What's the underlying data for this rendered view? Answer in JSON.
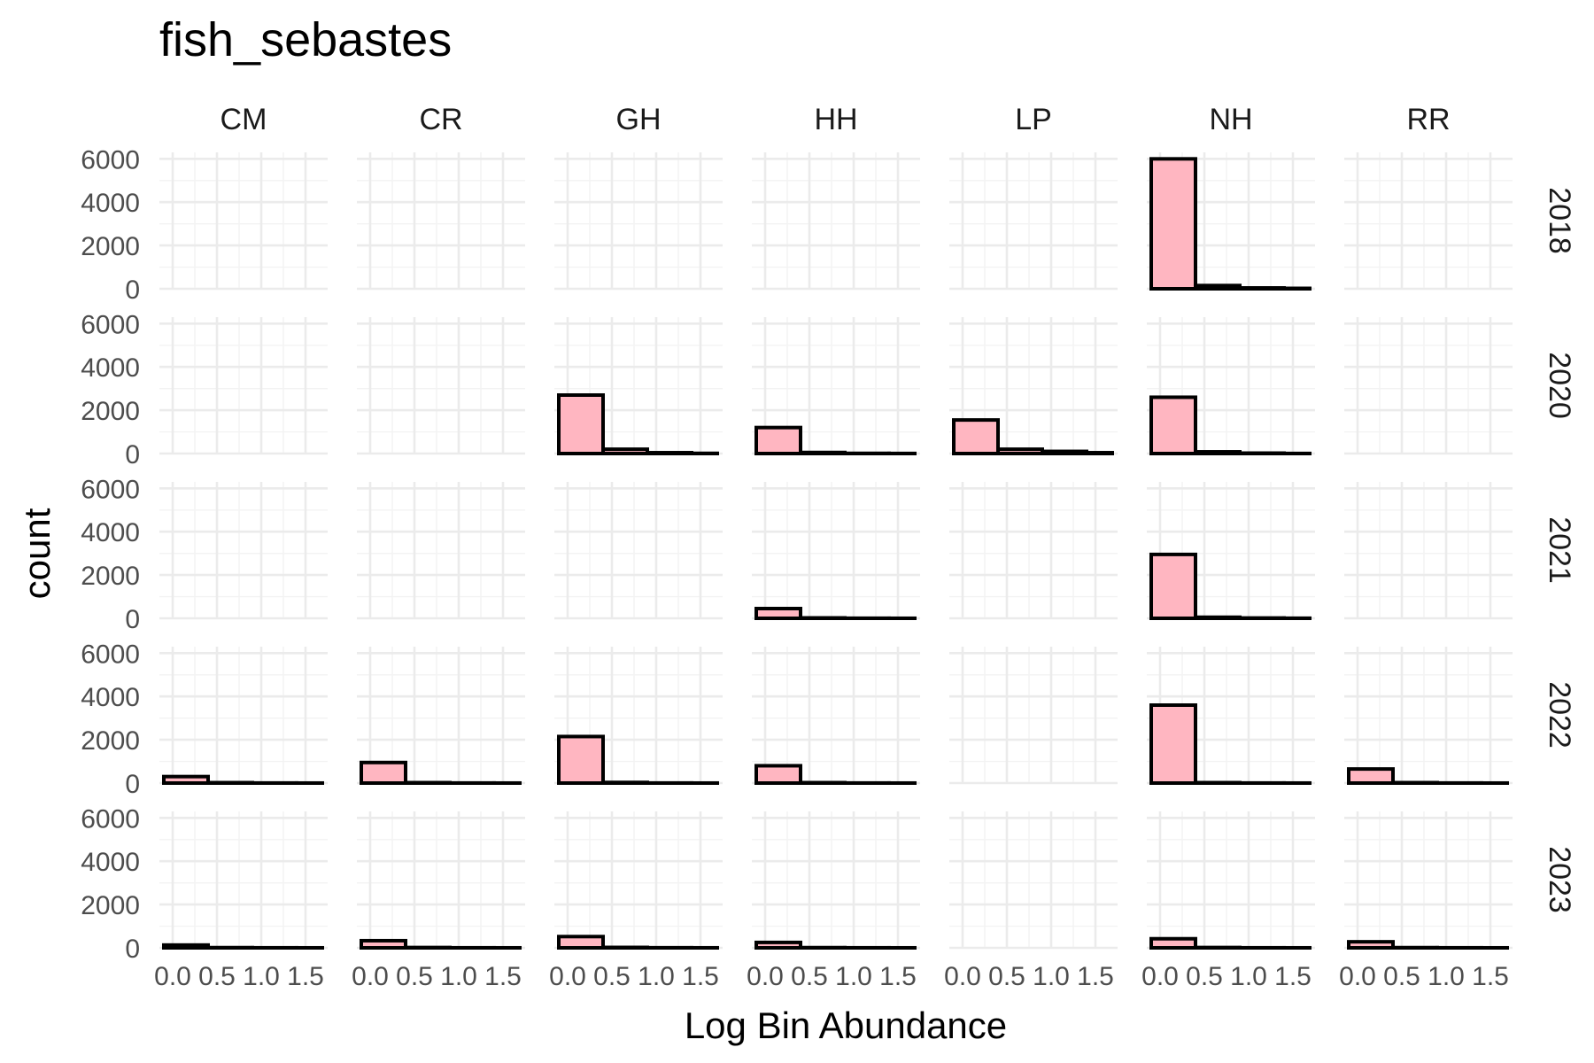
{
  "chart_data": {
    "type": "bar",
    "title": "fish_sebastes",
    "xlabel": "Log Bin Abundance",
    "ylabel": "count",
    "facet_columns": [
      "CM",
      "CR",
      "GH",
      "HH",
      "LP",
      "NH",
      "RR"
    ],
    "facet_rows": [
      "2018",
      "2020",
      "2021",
      "2022",
      "2023"
    ],
    "x_ticks": [
      "0.0",
      "0.5",
      "1.0",
      "1.5"
    ],
    "y_ticks": [
      0,
      2000,
      4000,
      6000
    ],
    "xlim": [
      -0.15,
      1.75
    ],
    "ylim": [
      0,
      6300
    ],
    "grid": true,
    "bar_fill": "#ffb6c1",
    "bar_outline": "#000000",
    "bins": [
      {
        "x_start": -0.1,
        "x_end": 0.4
      },
      {
        "x_start": 0.4,
        "x_end": 0.9
      },
      {
        "x_start": 0.9,
        "x_end": 1.4
      },
      {
        "x_start": 1.4,
        "x_end": 1.9
      }
    ],
    "panels": [
      {
        "site": "NH",
        "year": "2018",
        "counts": [
          6000,
          150,
          40,
          20
        ]
      },
      {
        "site": "GH",
        "year": "2020",
        "counts": [
          2700,
          200,
          40,
          10
        ]
      },
      {
        "site": "HH",
        "year": "2020",
        "counts": [
          1200,
          50,
          10,
          5
        ]
      },
      {
        "site": "LP",
        "year": "2020",
        "counts": [
          1550,
          200,
          100,
          40
        ]
      },
      {
        "site": "NH",
        "year": "2020",
        "counts": [
          2600,
          80,
          20,
          5
        ]
      },
      {
        "site": "HH",
        "year": "2021",
        "counts": [
          450,
          20,
          5,
          2
        ]
      },
      {
        "site": "NH",
        "year": "2021",
        "counts": [
          2950,
          50,
          15,
          5
        ]
      },
      {
        "site": "CM",
        "year": "2022",
        "counts": [
          300,
          20,
          5,
          2
        ]
      },
      {
        "site": "CR",
        "year": "2022",
        "counts": [
          950,
          20,
          5,
          2
        ]
      },
      {
        "site": "GH",
        "year": "2022",
        "counts": [
          2150,
          30,
          5,
          2
        ]
      },
      {
        "site": "HH",
        "year": "2022",
        "counts": [
          800,
          20,
          5,
          2
        ]
      },
      {
        "site": "NH",
        "year": "2022",
        "counts": [
          3600,
          20,
          5,
          2
        ]
      },
      {
        "site": "RR",
        "year": "2022",
        "counts": [
          650,
          20,
          5,
          2
        ]
      },
      {
        "site": "CM",
        "year": "2023",
        "counts": [
          130,
          10,
          3,
          1
        ]
      },
      {
        "site": "CR",
        "year": "2023",
        "counts": [
          330,
          15,
          3,
          1
        ]
      },
      {
        "site": "GH",
        "year": "2023",
        "counts": [
          520,
          20,
          5,
          2
        ]
      },
      {
        "site": "HH",
        "year": "2023",
        "counts": [
          250,
          10,
          3,
          1
        ]
      },
      {
        "site": "NH",
        "year": "2023",
        "counts": [
          420,
          15,
          3,
          1
        ]
      },
      {
        "site": "RR",
        "year": "2023",
        "counts": [
          280,
          10,
          3,
          1
        ]
      }
    ]
  }
}
